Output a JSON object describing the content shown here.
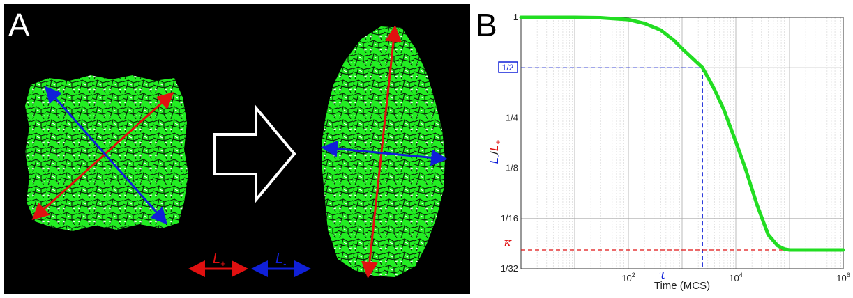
{
  "panel_a": {
    "letter": "A",
    "legend": {
      "plus_label": "L",
      "plus_sub": "+",
      "minus_label": "L",
      "minus_sub": "-"
    },
    "colors": {
      "background": "#000000",
      "cells": "#22ee22",
      "major_axis": "#e01010",
      "minor_axis": "#1020d8",
      "arrow_outline": "#ffffff"
    }
  },
  "panel_b": {
    "letter": "B",
    "annotations": {
      "half_box_label": "1/2",
      "tau_label": "τ",
      "kappa_label": "κ"
    }
  },
  "chart_data": {
    "type": "line",
    "xscale": "log",
    "yscale": "log",
    "xlim": [
      1,
      1000000
    ],
    "ylim": [
      0.03125,
      1
    ],
    "xlabel": "Time (MCS)",
    "ylabel": {
      "num": "L",
      "num_sub": "-",
      "slash": "/",
      "den": "L",
      "den_sub": "+"
    },
    "x_ticks": [
      {
        "value": 100,
        "base": "10",
        "exp": "2"
      },
      {
        "value": 10000,
        "base": "10",
        "exp": "4"
      },
      {
        "value": 1000000,
        "base": "10",
        "exp": "6"
      }
    ],
    "y_ticks": [
      {
        "value": 1,
        "label": "1"
      },
      {
        "value": 0.25,
        "label": "1/4"
      },
      {
        "value": 0.125,
        "label": "1/8"
      },
      {
        "value": 0.0625,
        "label": "1/16"
      },
      {
        "value": 0.03125,
        "label": "1/32"
      }
    ],
    "grid": true,
    "tau": 2400,
    "kappa": 0.0405,
    "series": [
      {
        "color": "#22dd22",
        "x": [
          1,
          10,
          30,
          100,
          200,
          400,
          700,
          1000,
          1500,
          2400,
          3000,
          4000,
          6000,
          10000,
          15000,
          25000,
          40000,
          60000,
          80000,
          100000,
          200000,
          500000,
          1000000
        ],
        "y": [
          1,
          1,
          0.995,
          0.97,
          0.92,
          0.84,
          0.73,
          0.65,
          0.575,
          0.5,
          0.44,
          0.37,
          0.28,
          0.18,
          0.125,
          0.075,
          0.05,
          0.043,
          0.041,
          0.0405,
          0.0405,
          0.0405,
          0.0405
        ]
      }
    ]
  }
}
